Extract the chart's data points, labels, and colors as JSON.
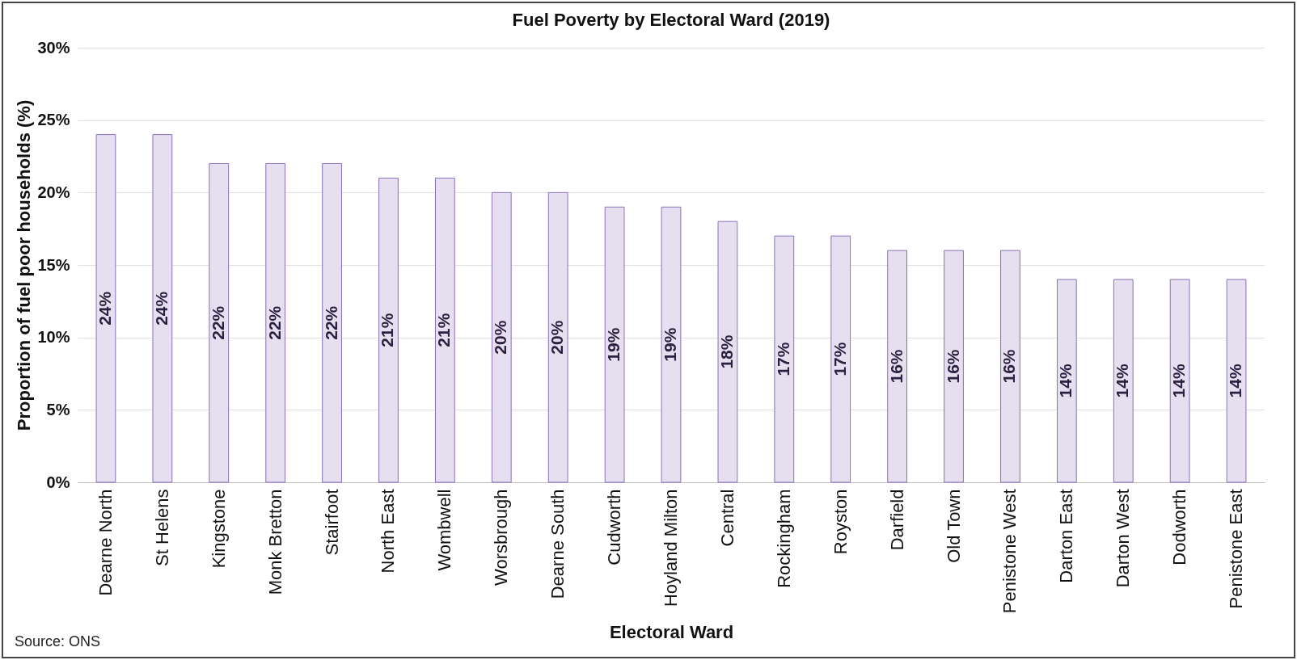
{
  "chart_data": {
    "type": "bar",
    "title": "Fuel Poverty by Electoral Ward (2019)",
    "xlabel": "Electoral Ward",
    "ylabel": "Proportion of fuel poor households (%)",
    "categories": [
      "Dearne North",
      "St Helens",
      "Kingstone",
      "Monk Bretton",
      "Stairfoot",
      "North East",
      "Wombwell",
      "Worsbrough",
      "Dearne South",
      "Cudworth",
      "Hoyland Milton",
      "Central",
      "Rockingham",
      "Royston",
      "Darfield",
      "Old Town",
      "Penistone West",
      "Darton East",
      "Darton West",
      "Dodworth",
      "Penistone East"
    ],
    "values": [
      24,
      24,
      22,
      22,
      22,
      21,
      21,
      20,
      20,
      19,
      19,
      18,
      17,
      17,
      16,
      16,
      16,
      14,
      14,
      14,
      14
    ],
    "value_labels": [
      "24%",
      "24%",
      "22%",
      "22%",
      "22%",
      "21%",
      "21%",
      "20%",
      "20%",
      "19%",
      "19%",
      "18%",
      "17%",
      "17%",
      "16%",
      "16%",
      "16%",
      "14%",
      "14%",
      "14%",
      "14%"
    ],
    "color": "#e6dff0",
    "ylim": [
      0,
      30
    ],
    "yticks": [
      {
        "value": 0,
        "label": "0%"
      },
      {
        "value": 5,
        "label": "5%"
      },
      {
        "value": 10,
        "label": "10%"
      },
      {
        "value": 15,
        "label": "15%"
      },
      {
        "value": 20,
        "label": "20%"
      },
      {
        "value": 25,
        "label": "25%"
      },
      {
        "value": 30,
        "label": "30%"
      }
    ],
    "grid": "y",
    "annotations": [
      "Source: ONS"
    ]
  }
}
